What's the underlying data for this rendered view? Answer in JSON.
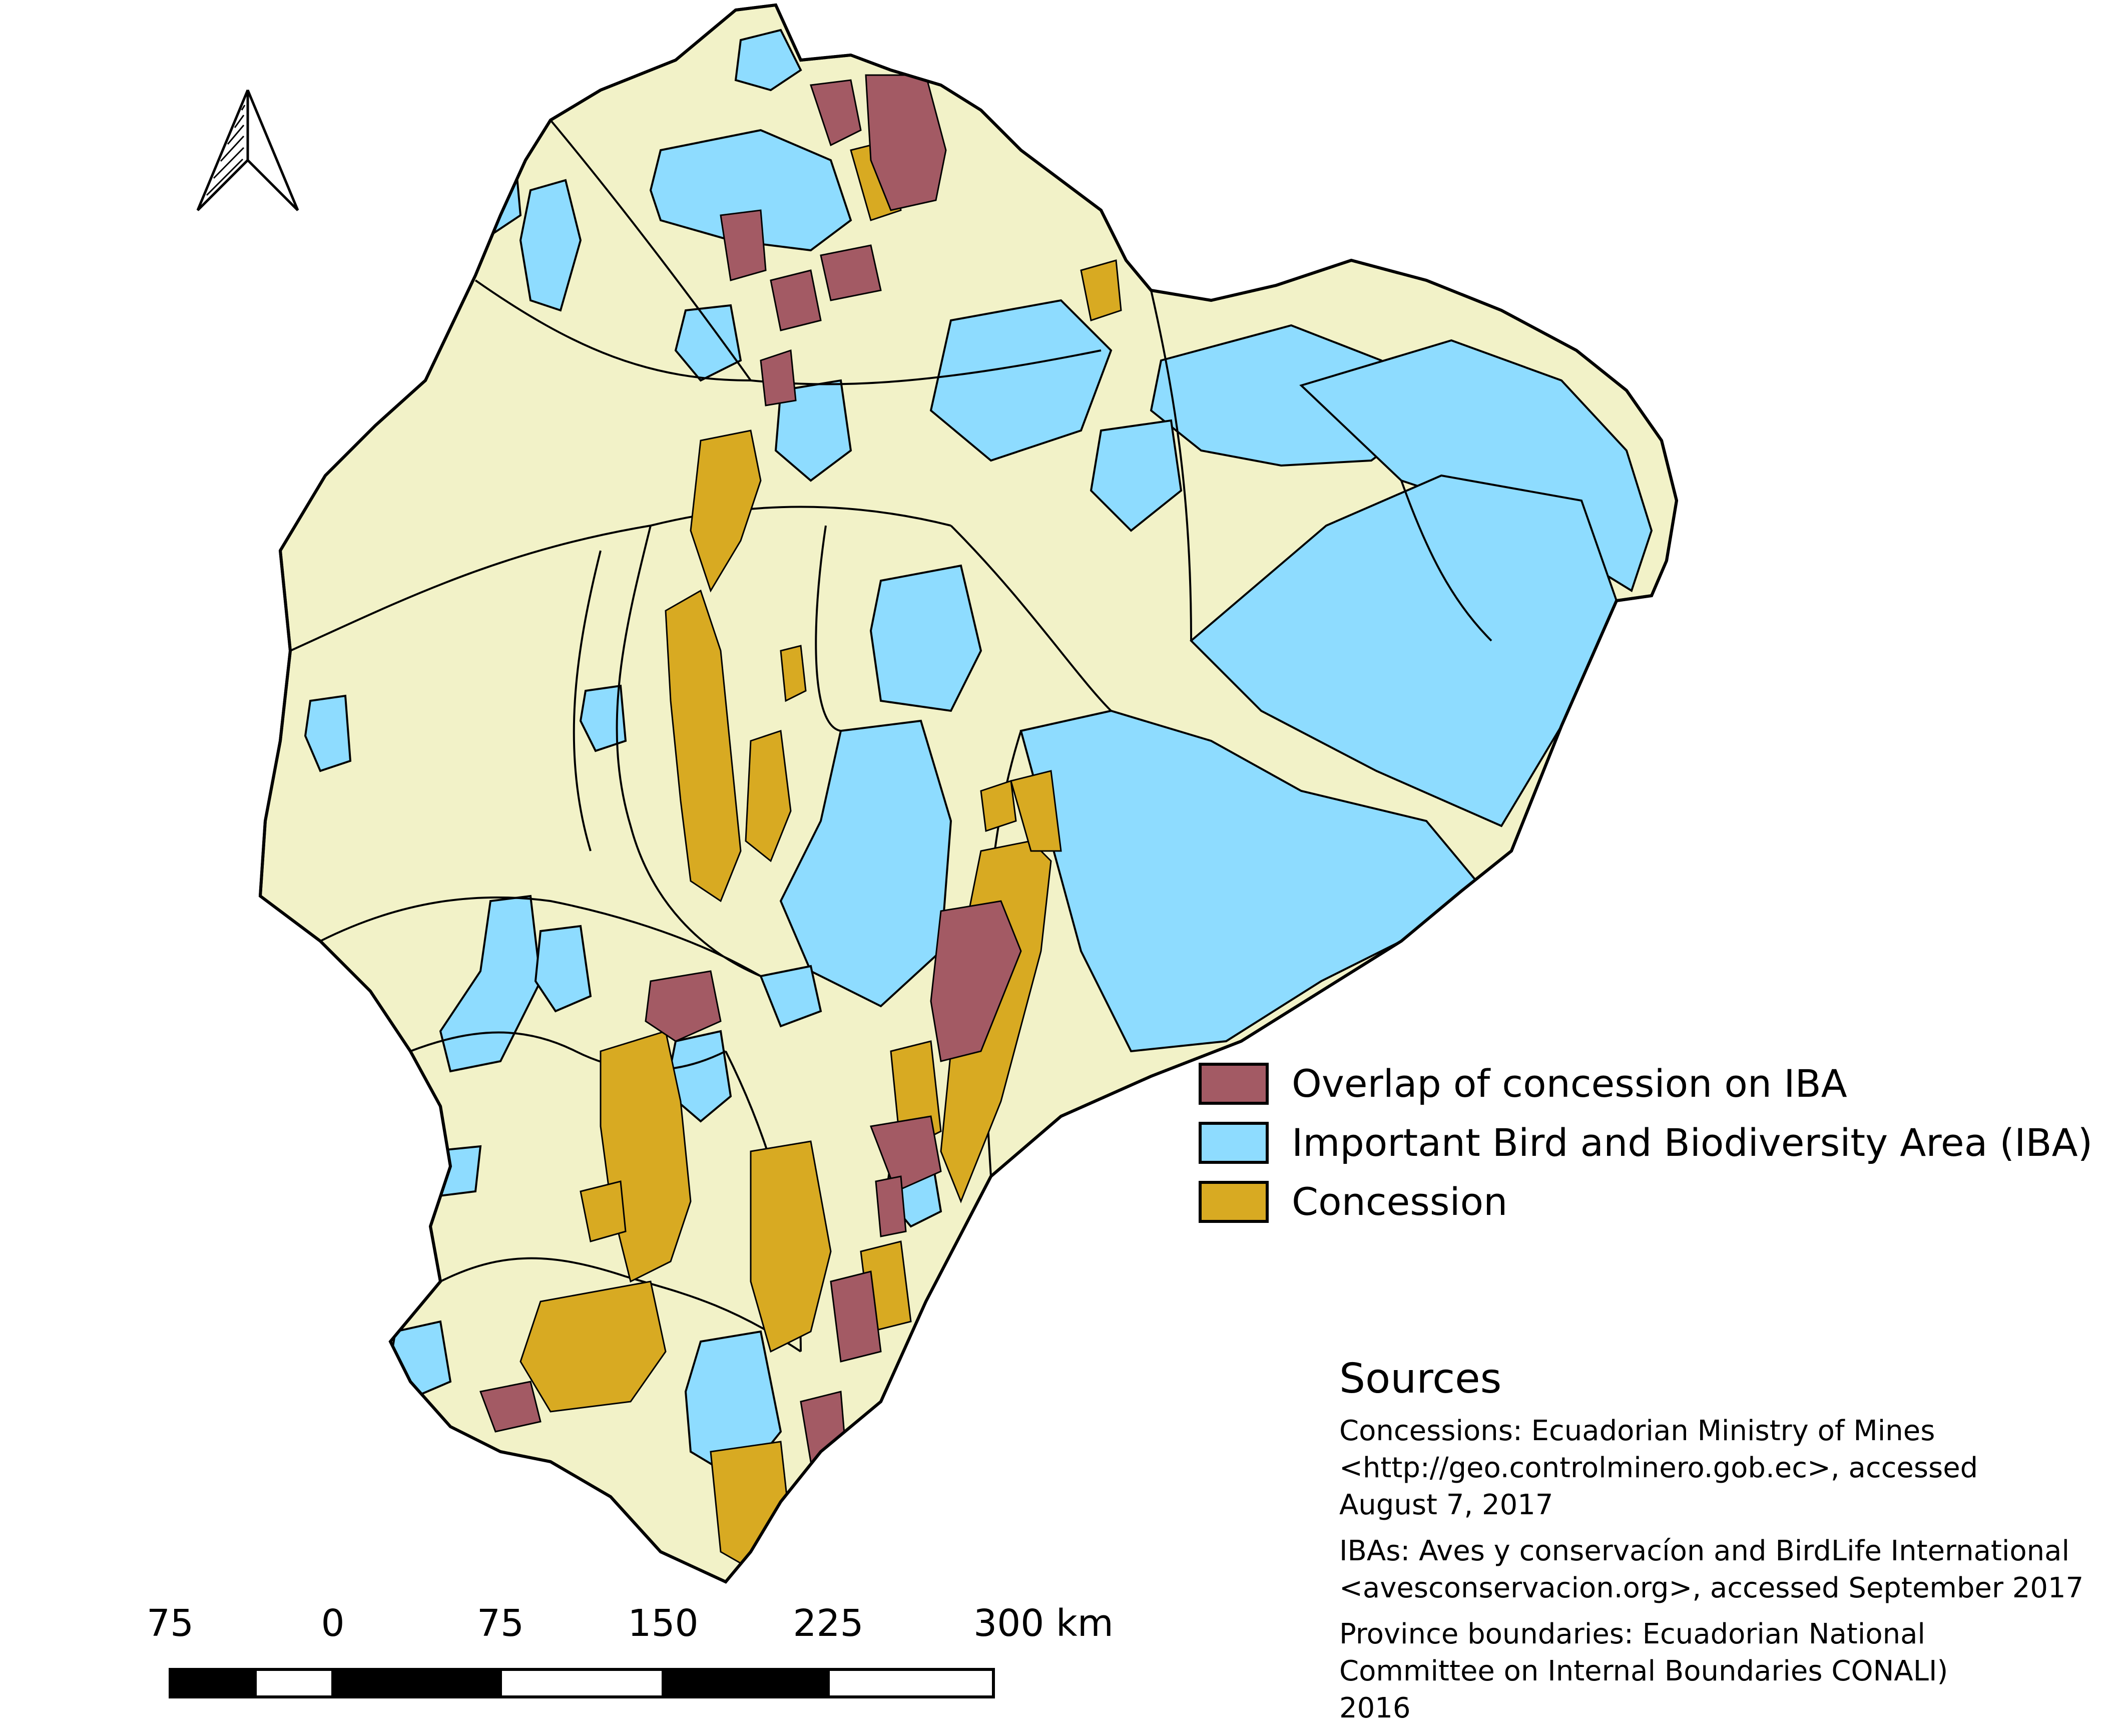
{
  "legend": {
    "items": [
      {
        "label": "Overlap of concession on IBA",
        "color": "#a35a64"
      },
      {
        "label": "Important Bird and Biodiversity Area (IBA)",
        "color": "#8edcff"
      },
      {
        "label": "Concession",
        "color": "#d8aa22"
      }
    ]
  },
  "sources": {
    "title": "Sources",
    "concessions": "Concessions:  Ecuadorian Ministry of Mines\n<http://geo.controlminero.gob.ec>, accessed\nAugust 7, 2017",
    "ibas": "IBAs: Aves y conservacíon and BirdLife International\n<avesconservacion.org>, accessed September 2017",
    "provinces": "Province boundaries: Ecuadorian National\nCommittee on Internal Boundaries CONALI)\n2016"
  },
  "scale_bar": {
    "labels": [
      "75",
      "0",
      "75",
      "150",
      "225",
      "300 km"
    ]
  },
  "colors": {
    "land": "#f2f2c8",
    "iba": "#8edcff",
    "concession": "#d8aa22",
    "overlap": "#a35a64",
    "outline": "#000000"
  },
  "north_arrow": {
    "icon": "north-arrow-icon"
  }
}
